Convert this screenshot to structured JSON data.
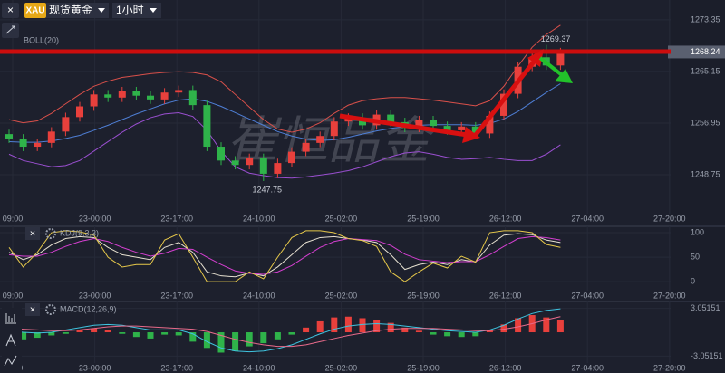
{
  "toolbar": {
    "symbol": "XAU",
    "instrument": "现货黄金",
    "interval": "1小时"
  },
  "watermark": "崔恒品金",
  "time_labels": [
    "09:00",
    "23-00:00",
    "23-17:00",
    "24-10:00",
    "25-02:00",
    "25-19:00",
    "26-12:00",
    "27-04:00",
    "27-20:00"
  ],
  "chart_data": [
    {
      "type": "candlestick",
      "title": "BOLL(20)",
      "up_color": "#e8403c",
      "down_color": "#2fb34a",
      "open": [
        1255.2,
        1254.5,
        1253.2,
        1253.8,
        1255.6,
        1257.9,
        1259.6,
        1261.5,
        1261.0,
        1262.0,
        1261.3,
        1260.7,
        1261.8,
        1262.2,
        1259.8,
        1253.2,
        1251.0,
        1250.3,
        1251.4,
        1248.9,
        1250.6,
        1252.4,
        1253.8,
        1254.9,
        1257.2,
        1257.8,
        1256.6,
        1258.3,
        1257.1,
        1256.2,
        1257.4,
        1256.5,
        1255.8,
        1256.4,
        1255.3,
        1258.1,
        1261.6,
        1265.9,
        1267.4,
        1266.1
      ],
      "high": [
        1255.9,
        1255.2,
        1254.5,
        1256.3,
        1258.6,
        1260.3,
        1262.2,
        1262.2,
        1262.7,
        1262.7,
        1262.0,
        1262.5,
        1262.9,
        1262.9,
        1260.5,
        1253.9,
        1251.7,
        1252.1,
        1252.1,
        1251.3,
        1253.1,
        1254.5,
        1255.6,
        1257.9,
        1258.5,
        1258.5,
        1259.0,
        1259.0,
        1257.8,
        1258.1,
        1258.1,
        1257.2,
        1257.1,
        1257.1,
        1258.8,
        1262.3,
        1266.6,
        1268.1,
        1269.37,
        1268.9
      ],
      "low": [
        1253.8,
        1252.5,
        1252.5,
        1253.1,
        1254.9,
        1257.2,
        1258.9,
        1260.3,
        1260.3,
        1260.6,
        1260.0,
        1260.0,
        1261.1,
        1259.1,
        1252.5,
        1250.3,
        1249.6,
        1249.6,
        1247.75,
        1248.2,
        1249.9,
        1251.7,
        1253.1,
        1254.2,
        1256.5,
        1255.9,
        1255.9,
        1256.4,
        1255.5,
        1255.5,
        1255.8,
        1255.1,
        1255.1,
        1254.6,
        1254.6,
        1257.4,
        1260.9,
        1265.2,
        1265.4,
        1265.4
      ],
      "close": [
        1254.5,
        1253.2,
        1253.8,
        1255.6,
        1257.9,
        1259.6,
        1261.5,
        1261.0,
        1262.0,
        1261.3,
        1260.7,
        1261.8,
        1262.2,
        1259.8,
        1253.2,
        1251.0,
        1250.3,
        1251.4,
        1248.9,
        1250.6,
        1252.4,
        1253.8,
        1254.9,
        1257.2,
        1257.8,
        1256.6,
        1258.3,
        1257.1,
        1256.2,
        1257.4,
        1256.5,
        1255.8,
        1256.4,
        1255.3,
        1258.1,
        1261.6,
        1265.9,
        1267.4,
        1266.1,
        1268.24
      ],
      "series": [
        {
          "color": "#d9504a",
          "values": [
            1257.5,
            1257.0,
            1257.3,
            1258.5,
            1260.0,
            1261.5,
            1262.8,
            1263.6,
            1264.2,
            1264.5,
            1264.8,
            1265.0,
            1265.1,
            1265.0,
            1264.6,
            1263.5,
            1261.5,
            1259.5,
            1257.5,
            1256.0,
            1255.5,
            1256.0,
            1257.0,
            1258.5,
            1259.8,
            1260.5,
            1260.8,
            1261.0,
            1261.0,
            1260.8,
            1260.6,
            1260.3,
            1260.0,
            1259.7,
            1260.5,
            1262.8,
            1266.0,
            1269.0,
            1271.0,
            1272.5
          ]
        },
        {
          "color": "#4f7fd6",
          "values": [
            1254.0,
            1253.9,
            1253.9,
            1254.1,
            1254.5,
            1255.0,
            1255.8,
            1256.6,
            1257.5,
            1258.4,
            1259.2,
            1260.0,
            1260.6,
            1260.8,
            1260.4,
            1259.6,
            1258.6,
            1257.6,
            1256.6,
            1255.6,
            1254.9,
            1254.4,
            1254.2,
            1254.3,
            1254.7,
            1255.2,
            1255.7,
            1256.1,
            1256.4,
            1256.6,
            1256.7,
            1256.7,
            1256.7,
            1256.6,
            1256.9,
            1257.6,
            1258.8,
            1260.3,
            1261.8,
            1263.2
          ]
        },
        {
          "color": "#9a4fd0",
          "values": [
            1252.0,
            1251.0,
            1250.5,
            1250.0,
            1250.2,
            1251.0,
            1252.5,
            1254.0,
            1255.5,
            1256.8,
            1257.8,
            1258.4,
            1258.6,
            1258.0,
            1255.8,
            1252.5,
            1250.0,
            1249.0,
            1248.6,
            1248.3,
            1248.2,
            1248.4,
            1248.7,
            1249.0,
            1249.4,
            1250.0,
            1250.8,
            1251.6,
            1252.2,
            1252.4,
            1252.0,
            1251.5,
            1251.2,
            1251.3,
            1251.5,
            1251.2,
            1251.0,
            1251.0,
            1252.0,
            1253.5
          ]
        }
      ],
      "ylim": [
        1240.55,
        1276.5
      ],
      "yticks": [
        1273.35,
        1265.15,
        1256.95,
        1248.75
      ]
    },
    {
      "type": "line",
      "title": "KDJ(9,3,3)",
      "series": [
        {
          "color": "#e6e0d0",
          "values": [
            60,
            45,
            55,
            75,
            88,
            92,
            90,
            70,
            55,
            50,
            45,
            70,
            80,
            60,
            20,
            12,
            10,
            18,
            12,
            30,
            55,
            80,
            90,
            92,
            88,
            85,
            80,
            55,
            25,
            35,
            40,
            35,
            45,
            40,
            75,
            95,
            98,
            96,
            85,
            80
          ]
        },
        {
          "color": "#d43fd0",
          "values": [
            55,
            52,
            52,
            60,
            72,
            82,
            88,
            82,
            70,
            60,
            52,
            58,
            68,
            66,
            50,
            35,
            22,
            17,
            15,
            20,
            33,
            52,
            70,
            82,
            88,
            86,
            84,
            74,
            56,
            45,
            42,
            39,
            41,
            41,
            55,
            72,
            88,
            92,
            90,
            85
          ]
        },
        {
          "color": "#e6c84a",
          "values": [
            70,
            30,
            60,
            100,
            104,
            102,
            95,
            50,
            30,
            35,
            35,
            85,
            98,
            50,
            0,
            0,
            0,
            20,
            6,
            50,
            90,
            104,
            104,
            100,
            88,
            84,
            72,
            20,
            0,
            20,
            38,
            28,
            52,
            40,
            100,
            104,
            104,
            100,
            76,
            70
          ]
        }
      ],
      "ylim": [
        -20,
        113
      ],
      "yticks": [
        0,
        50,
        100
      ]
    },
    {
      "type": "macd",
      "title": "MACD(12,26,9)",
      "up_color": "#e8403c",
      "down_color": "#2fb34a",
      "values": [
        -0.6,
        -0.9,
        -0.7,
        -0.4,
        -0.2,
        0.3,
        0.5,
        0.3,
        -0.2,
        -0.6,
        -0.8,
        -0.3,
        -0.4,
        -1.2,
        -2.0,
        -2.6,
        -2.4,
        -1.8,
        -1.4,
        -0.9,
        -0.3,
        0.6,
        1.4,
        1.9,
        2.0,
        1.8,
        1.6,
        1.2,
        0.6,
        0.2,
        -0.3,
        -0.5,
        -0.6,
        -0.5,
        0.2,
        1.0,
        1.8,
        2.2,
        1.9,
        1.6
      ],
      "series": [
        {
          "color": "#3fc4e0",
          "values": [
            0.2,
            0.0,
            -0.1,
            0.0,
            0.3,
            0.6,
            0.9,
            1.0,
            0.9,
            0.6,
            0.3,
            0.3,
            0.3,
            -0.2,
            -1.2,
            -2.0,
            -2.4,
            -2.5,
            -2.4,
            -2.1,
            -1.6,
            -0.9,
            -0.2,
            0.4,
            0.8,
            1.0,
            1.1,
            1.0,
            0.8,
            0.6,
            0.4,
            0.2,
            0.1,
            0.0,
            0.3,
            0.9,
            1.7,
            2.4,
            2.8,
            3.0
          ]
        },
        {
          "color": "#e86a8a",
          "values": [
            0.5,
            0.4,
            0.3,
            0.2,
            0.2,
            0.3,
            0.5,
            0.7,
            0.8,
            0.8,
            0.7,
            0.6,
            0.5,
            0.4,
            0.1,
            -0.4,
            -0.9,
            -1.3,
            -1.6,
            -1.8,
            -1.8,
            -1.6,
            -1.2,
            -0.8,
            -0.4,
            -0.1,
            0.2,
            0.4,
            0.5,
            0.5,
            0.5,
            0.4,
            0.3,
            0.2,
            0.2,
            0.4,
            0.7,
            1.1,
            1.6,
            2.0
          ]
        }
      ],
      "ylim": [
        -4.05,
        3.94
      ],
      "yticks": [
        3.05151,
        -3.05151
      ]
    }
  ]
}
